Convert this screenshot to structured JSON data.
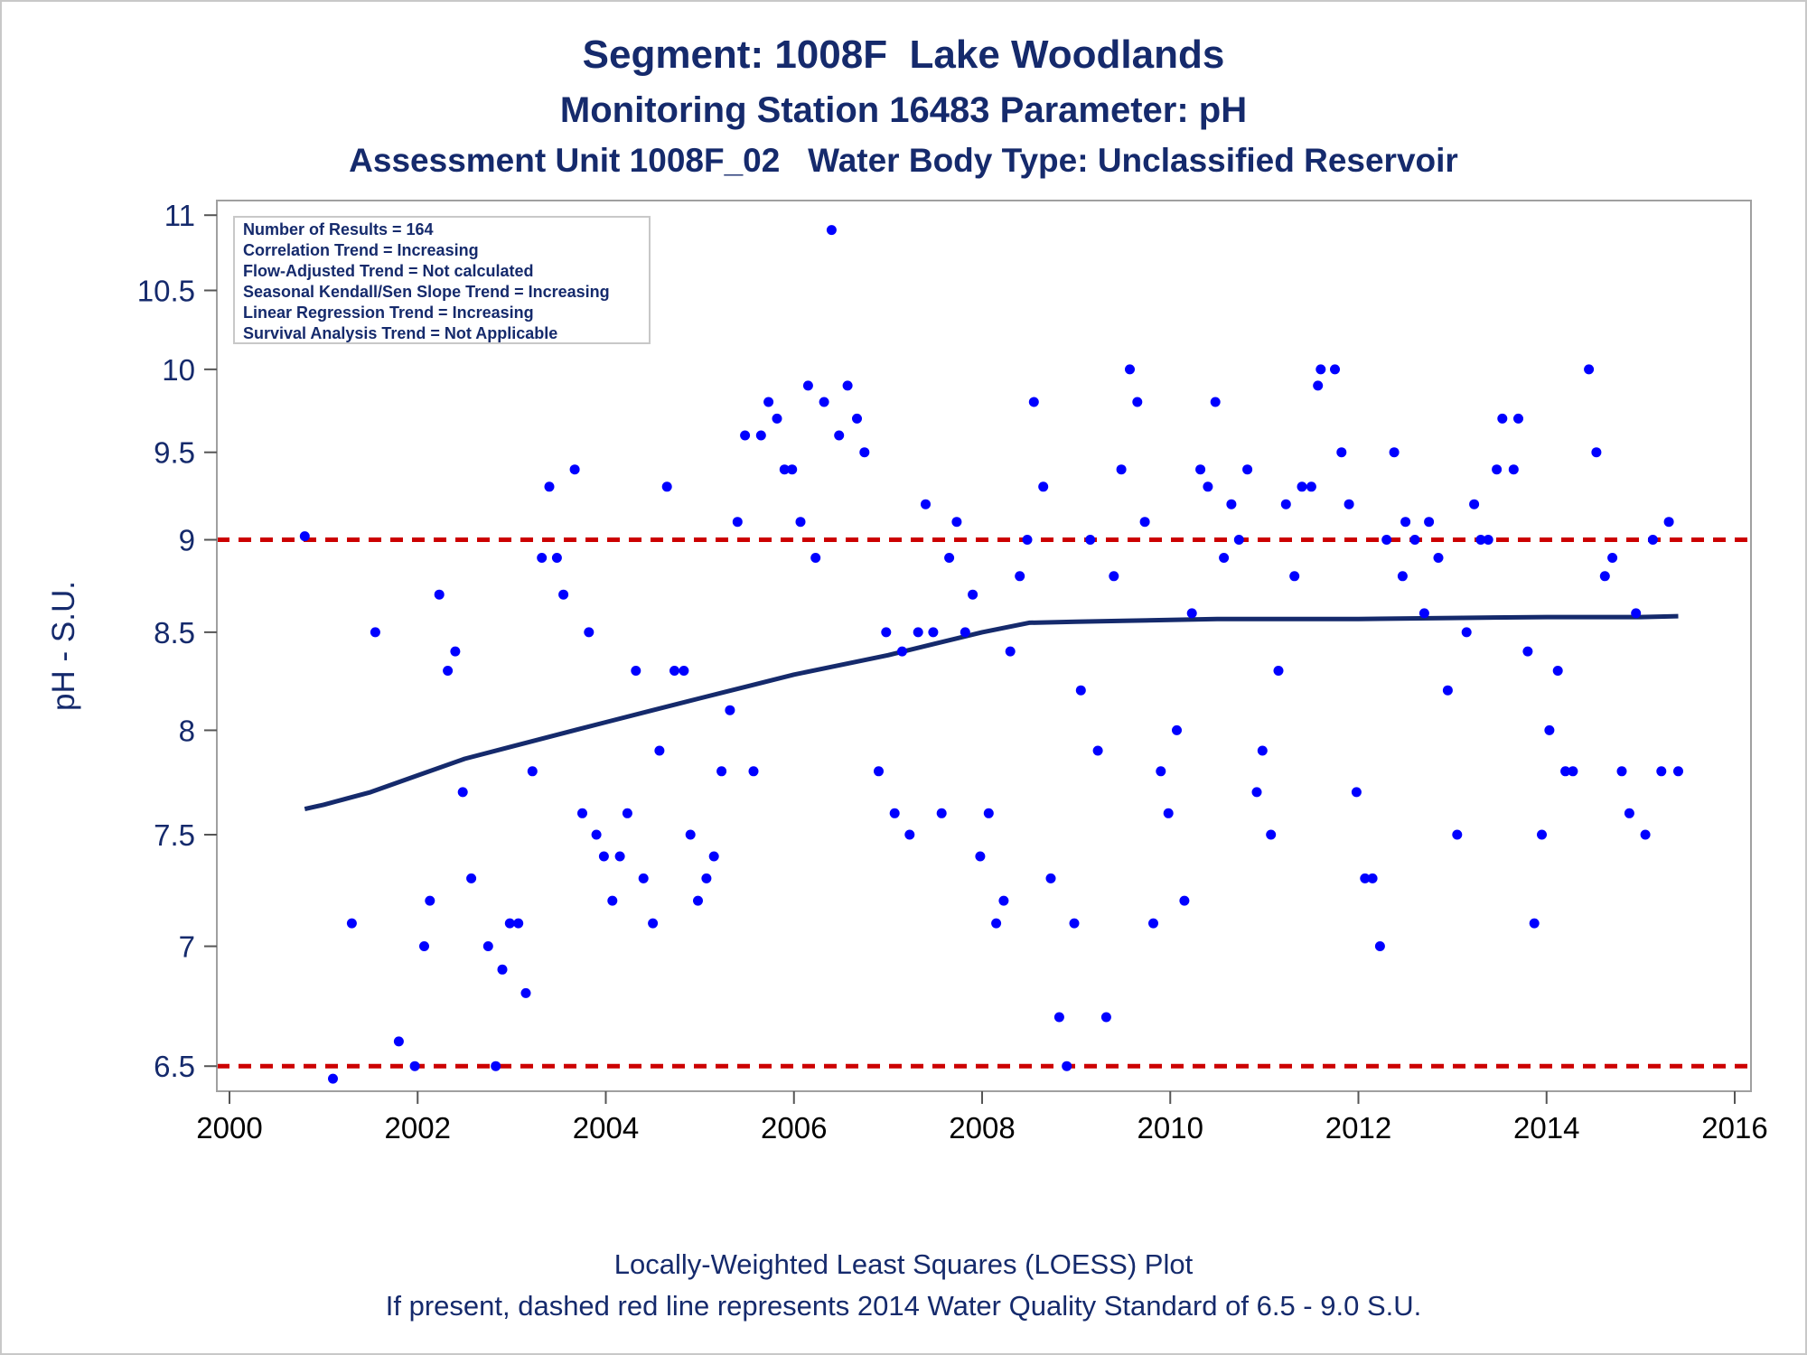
{
  "titles": {
    "line1": "Segment: 1008F  Lake Woodlands",
    "line2": "Monitoring Station 16483 Parameter: pH",
    "line3": "Assessment Unit 1008F_02   Water Body Type: Unclassified Reservoir"
  },
  "footnotes": {
    "line1": "Locally-Weighted Least Squares (LOESS) Plot",
    "line2": "If present, dashed red line represents 2014 Water Quality Standard of 6.5 - 9.0 S.U."
  },
  "stats_box": [
    "Number of Results = 164",
    "Correlation Trend = Increasing",
    "Flow-Adjusted Trend = Not calculated",
    "Seasonal Kendall/Sen Slope Trend = Increasing",
    "Linear Regression Trend = Increasing",
    "Survival Analysis Trend = Not Applicable"
  ],
  "colors": {
    "text": "#152a6c",
    "points": "#0000ff",
    "loess": "#152a6c",
    "standard": "#cc0000",
    "frame": "#a0a0a0"
  },
  "chart_data": {
    "type": "scatter",
    "ylabel": "pH - S.U.",
    "xlabel": "",
    "xlim": [
      2000,
      2016
    ],
    "ylim": [
      6.4,
      11.1
    ],
    "y_scale": "log",
    "x_ticks": [
      "2000",
      "2002",
      "2004",
      "2006",
      "2008",
      "2010",
      "2012",
      "2014",
      "2016"
    ],
    "y_ticks": [
      "6.5",
      "7",
      "7.5",
      "8",
      "8.5",
      "9",
      "9.5",
      "10",
      "10.5",
      "11"
    ],
    "reference_lines": [
      {
        "y": 9.0,
        "style": "dashed",
        "color": "red"
      },
      {
        "y": 6.5,
        "style": "dashed",
        "color": "red"
      }
    ],
    "series": [
      {
        "type": "scatter",
        "points": [
          [
            2000.8,
            9.02
          ],
          [
            2001.1,
            6.45
          ],
          [
            2001.3,
            7.1
          ],
          [
            2001.55,
            8.5
          ],
          [
            2001.8,
            6.6
          ],
          [
            2001.97,
            6.5
          ],
          [
            2002.07,
            7.0
          ],
          [
            2002.13,
            7.2
          ],
          [
            2002.23,
            8.7
          ],
          [
            2002.32,
            8.3
          ],
          [
            2002.4,
            8.4
          ],
          [
            2002.48,
            7.7
          ],
          [
            2002.57,
            7.3
          ],
          [
            2002.75,
            7.0
          ],
          [
            2002.83,
            6.5
          ],
          [
            2002.9,
            6.9
          ],
          [
            2002.98,
            7.1
          ],
          [
            2003.07,
            7.1
          ],
          [
            2003.15,
            6.8
          ],
          [
            2003.22,
            7.8
          ],
          [
            2003.32,
            8.9
          ],
          [
            2003.4,
            9.3
          ],
          [
            2003.48,
            8.9
          ],
          [
            2003.55,
            8.7
          ],
          [
            2003.67,
            9.4
          ],
          [
            2003.75,
            7.6
          ],
          [
            2003.82,
            8.5
          ],
          [
            2003.9,
            7.5
          ],
          [
            2003.98,
            7.4
          ],
          [
            2004.07,
            7.2
          ],
          [
            2004.15,
            7.4
          ],
          [
            2004.23,
            7.6
          ],
          [
            2004.32,
            8.3
          ],
          [
            2004.4,
            7.3
          ],
          [
            2004.5,
            7.1
          ],
          [
            2004.57,
            7.9
          ],
          [
            2004.65,
            9.3
          ],
          [
            2004.73,
            8.3
          ],
          [
            2004.83,
            8.3
          ],
          [
            2004.9,
            7.5
          ],
          [
            2004.98,
            7.2
          ],
          [
            2005.07,
            7.3
          ],
          [
            2005.15,
            7.4
          ],
          [
            2005.23,
            7.8
          ],
          [
            2005.32,
            8.1
          ],
          [
            2005.4,
            9.1
          ],
          [
            2005.48,
            9.6
          ],
          [
            2005.57,
            7.8
          ],
          [
            2005.65,
            9.6
          ],
          [
            2005.73,
            9.8
          ],
          [
            2005.82,
            9.7
          ],
          [
            2005.9,
            9.4
          ],
          [
            2005.98,
            9.4
          ],
          [
            2006.07,
            9.1
          ],
          [
            2006.15,
            9.9
          ],
          [
            2006.23,
            8.9
          ],
          [
            2006.32,
            9.8
          ],
          [
            2006.4,
            10.9
          ],
          [
            2006.48,
            9.6
          ],
          [
            2006.57,
            9.9
          ],
          [
            2006.67,
            9.7
          ],
          [
            2006.75,
            9.5
          ],
          [
            2006.9,
            7.8
          ],
          [
            2006.98,
            8.5
          ],
          [
            2007.07,
            7.6
          ],
          [
            2007.15,
            8.4
          ],
          [
            2007.23,
            7.5
          ],
          [
            2007.32,
            8.5
          ],
          [
            2007.4,
            9.2
          ],
          [
            2007.48,
            8.5
          ],
          [
            2007.57,
            7.6
          ],
          [
            2007.65,
            8.9
          ],
          [
            2007.73,
            9.1
          ],
          [
            2007.82,
            8.5
          ],
          [
            2007.9,
            8.7
          ],
          [
            2007.98,
            7.4
          ],
          [
            2008.07,
            7.6
          ],
          [
            2008.15,
            7.1
          ],
          [
            2008.23,
            7.2
          ],
          [
            2008.3,
            8.4
          ],
          [
            2008.4,
            8.8
          ],
          [
            2008.48,
            9.0
          ],
          [
            2008.55,
            9.8
          ],
          [
            2008.65,
            9.3
          ],
          [
            2008.73,
            7.3
          ],
          [
            2008.82,
            6.7
          ],
          [
            2008.9,
            6.5
          ],
          [
            2008.98,
            7.1
          ],
          [
            2009.05,
            8.2
          ],
          [
            2009.15,
            9.0
          ],
          [
            2009.23,
            7.9
          ],
          [
            2009.32,
            6.7
          ],
          [
            2009.4,
            8.8
          ],
          [
            2009.48,
            9.4
          ],
          [
            2009.57,
            10.0
          ],
          [
            2009.65,
            9.8
          ],
          [
            2009.73,
            9.1
          ],
          [
            2009.82,
            7.1
          ],
          [
            2009.9,
            7.8
          ],
          [
            2009.98,
            7.6
          ],
          [
            2010.07,
            8.0
          ],
          [
            2010.15,
            7.2
          ],
          [
            2010.23,
            8.6
          ],
          [
            2010.32,
            9.4
          ],
          [
            2010.4,
            9.3
          ],
          [
            2010.48,
            9.8
          ],
          [
            2010.57,
            8.9
          ],
          [
            2010.65,
            9.2
          ],
          [
            2010.73,
            9.0
          ],
          [
            2010.82,
            9.4
          ],
          [
            2010.92,
            7.7
          ],
          [
            2010.98,
            7.9
          ],
          [
            2011.07,
            7.5
          ],
          [
            2011.15,
            8.3
          ],
          [
            2011.23,
            9.2
          ],
          [
            2011.32,
            8.8
          ],
          [
            2011.4,
            9.3
          ],
          [
            2011.5,
            9.3
          ],
          [
            2011.57,
            9.9
          ],
          [
            2011.6,
            10.0
          ],
          [
            2011.75,
            10.0
          ],
          [
            2011.82,
            9.5
          ],
          [
            2011.9,
            9.2
          ],
          [
            2011.98,
            7.7
          ],
          [
            2012.07,
            7.3
          ],
          [
            2012.15,
            7.3
          ],
          [
            2012.23,
            7.0
          ],
          [
            2012.3,
            9.0
          ],
          [
            2012.38,
            9.5
          ],
          [
            2012.47,
            8.8
          ],
          [
            2012.5,
            9.1
          ],
          [
            2012.6,
            9.0
          ],
          [
            2012.7,
            8.6
          ],
          [
            2012.75,
            9.1
          ],
          [
            2012.85,
            8.9
          ],
          [
            2012.95,
            8.2
          ],
          [
            2013.05,
            7.5
          ],
          [
            2013.15,
            8.5
          ],
          [
            2013.23,
            9.2
          ],
          [
            2013.3,
            9.0
          ],
          [
            2013.38,
            9.0
          ],
          [
            2013.47,
            9.4
          ],
          [
            2013.53,
            9.7
          ],
          [
            2013.65,
            9.4
          ],
          [
            2013.7,
            9.7
          ],
          [
            2013.8,
            8.4
          ],
          [
            2013.87,
            7.1
          ],
          [
            2013.95,
            7.5
          ],
          [
            2014.03,
            8.0
          ],
          [
            2014.12,
            8.3
          ],
          [
            2014.2,
            7.8
          ],
          [
            2014.28,
            7.8
          ],
          [
            2014.45,
            10.0
          ],
          [
            2014.53,
            9.5
          ],
          [
            2014.62,
            8.8
          ],
          [
            2014.7,
            8.9
          ],
          [
            2014.8,
            7.8
          ],
          [
            2014.88,
            7.6
          ],
          [
            2014.95,
            8.6
          ],
          [
            2015.05,
            7.5
          ],
          [
            2015.13,
            9.0
          ],
          [
            2015.22,
            7.8
          ],
          [
            2015.3,
            9.1
          ],
          [
            2015.4,
            7.8
          ]
        ]
      },
      {
        "type": "line",
        "name": "",
        "points": [
          [
            2000.8,
            7.62
          ],
          [
            2001.0,
            7.64
          ],
          [
            2001.5,
            7.7
          ],
          [
            2002.0,
            7.78
          ],
          [
            2002.5,
            7.86
          ],
          [
            2003.0,
            7.92
          ],
          [
            2003.5,
            7.98
          ],
          [
            2004.0,
            8.04
          ],
          [
            2004.5,
            8.1
          ],
          [
            2005.0,
            8.16
          ],
          [
            2005.5,
            8.22
          ],
          [
            2006.0,
            8.28
          ],
          [
            2006.5,
            8.33
          ],
          [
            2007.0,
            8.38
          ],
          [
            2007.5,
            8.44
          ],
          [
            2008.0,
            8.5
          ],
          [
            2008.5,
            8.55
          ],
          [
            2009.0,
            8.555
          ],
          [
            2009.5,
            8.56
          ],
          [
            2010.0,
            8.565
          ],
          [
            2010.5,
            8.57
          ],
          [
            2011.0,
            8.57
          ],
          [
            2012.0,
            8.57
          ],
          [
            2013.0,
            8.575
          ],
          [
            2014.0,
            8.58
          ],
          [
            2015.0,
            8.58
          ],
          [
            2015.4,
            8.585
          ]
        ]
      }
    ]
  }
}
